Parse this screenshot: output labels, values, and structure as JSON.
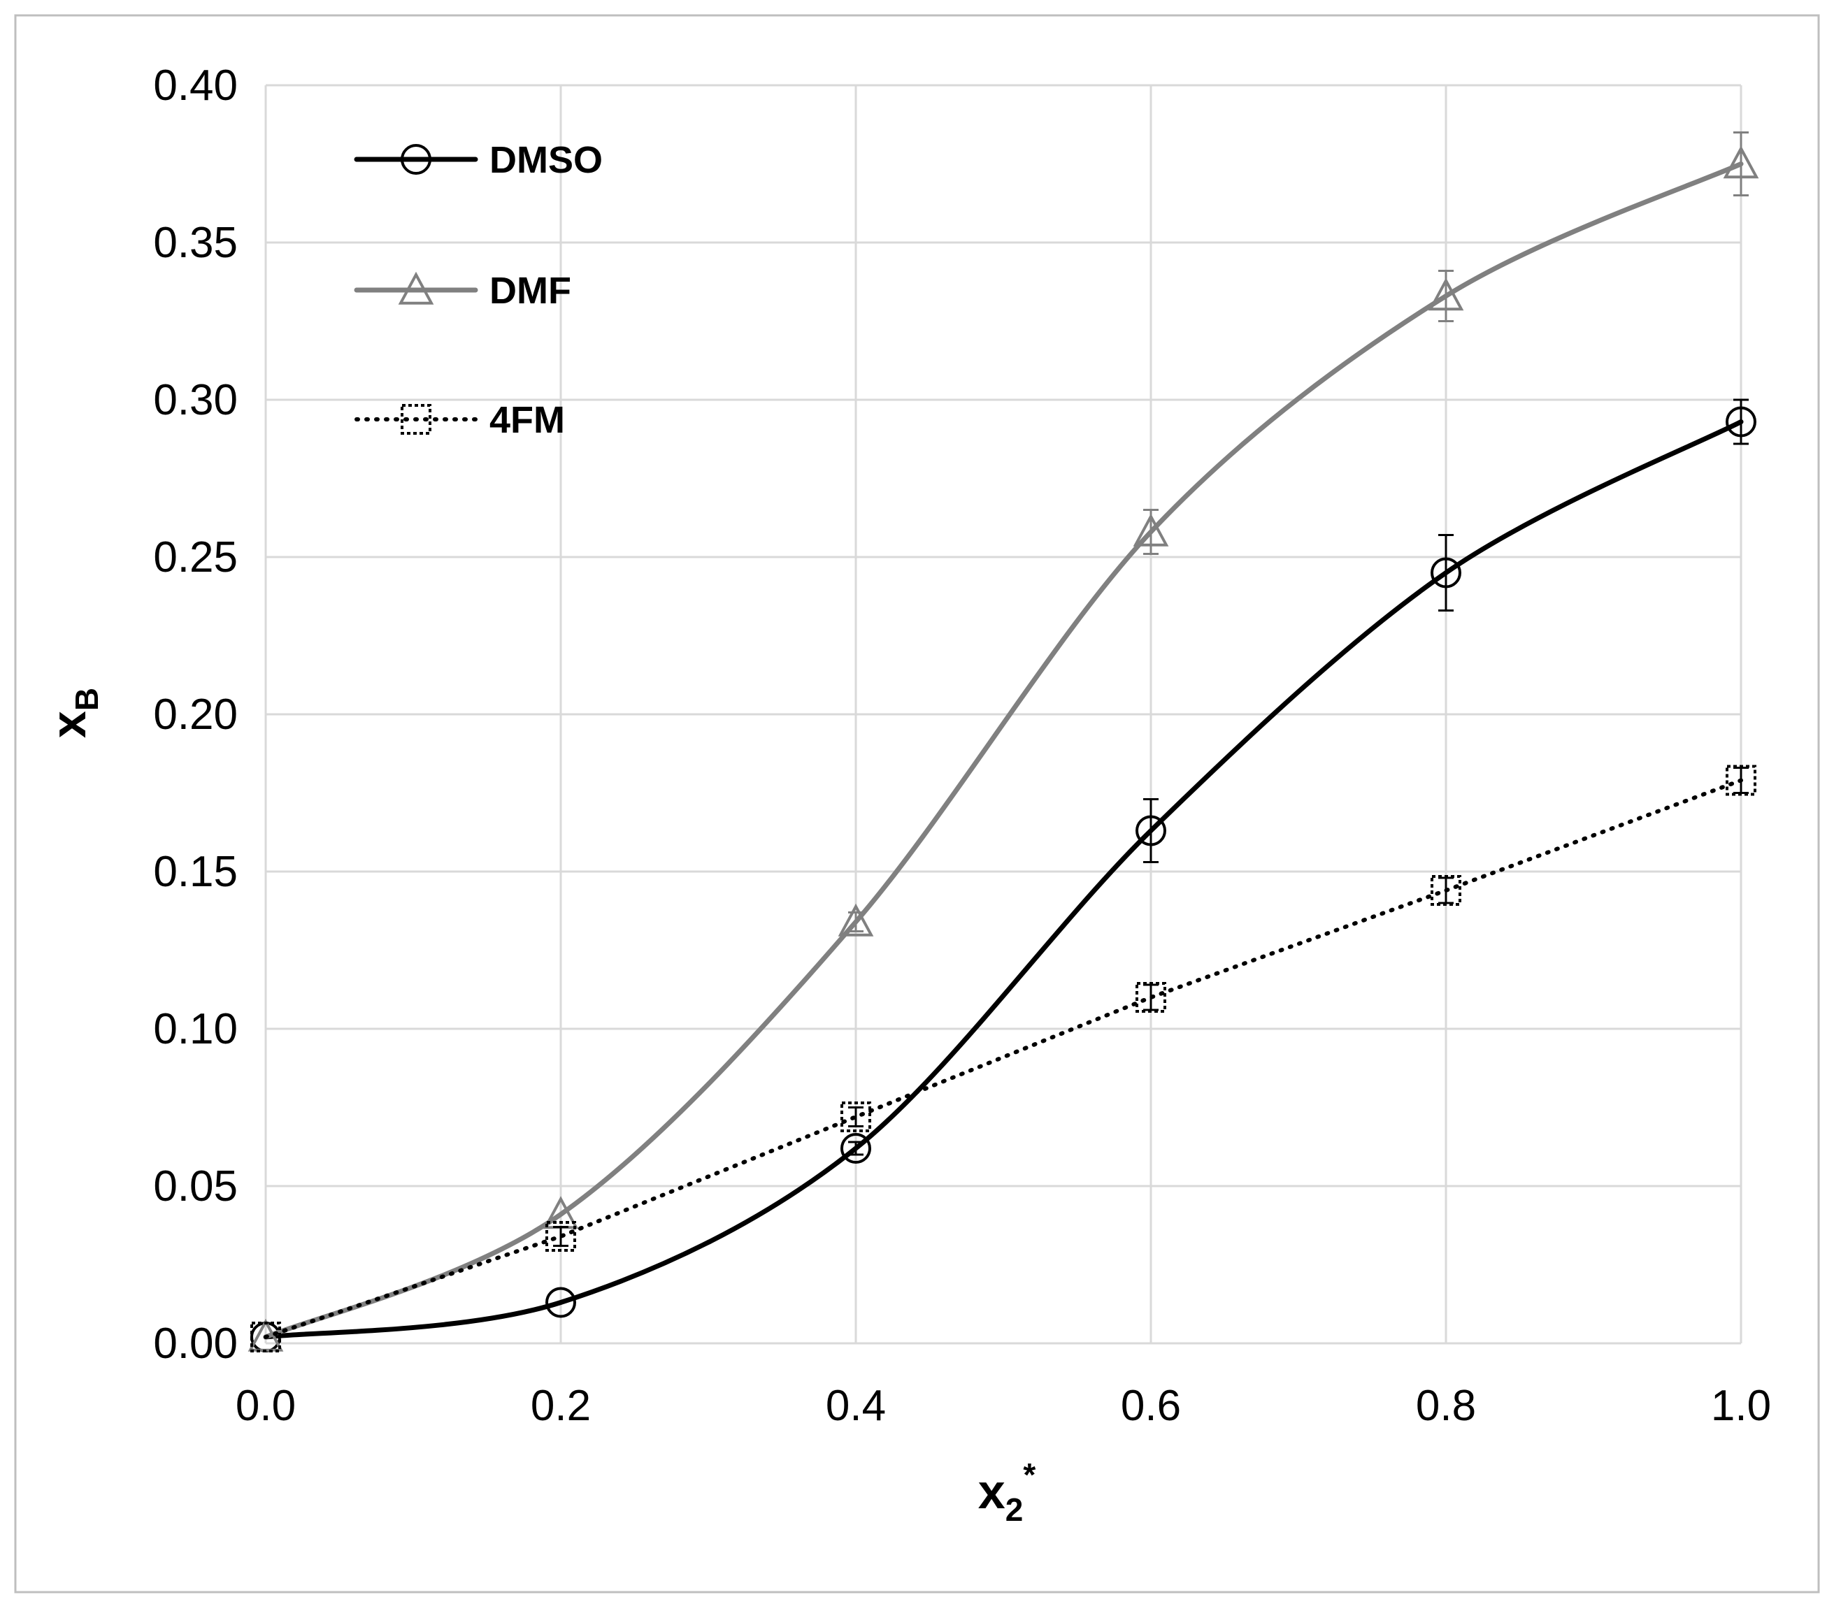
{
  "chart_data": {
    "type": "line",
    "title": "",
    "xlabel": {
      "main": "x",
      "sub": "2",
      "sup": "*"
    },
    "ylabel": {
      "main": "x",
      "sub": "B"
    },
    "xlim": [
      0.0,
      1.0
    ],
    "ylim": [
      0.0,
      0.4
    ],
    "x_ticks": [
      "0.0",
      "0.2",
      "0.4",
      "0.6",
      "0.8",
      "1.0"
    ],
    "y_ticks": [
      "0.00",
      "0.05",
      "0.10",
      "0.15",
      "0.20",
      "0.25",
      "0.30",
      "0.35",
      "0.40"
    ],
    "x_tick_values": [
      0.0,
      0.2,
      0.4,
      0.6,
      0.8,
      1.0
    ],
    "y_tick_values": [
      0.0,
      0.05,
      0.1,
      0.15,
      0.2,
      0.25,
      0.3,
      0.35,
      0.4
    ],
    "grid": true,
    "legend_position": "top-left",
    "x": [
      0.0,
      0.2,
      0.4,
      0.6,
      0.8,
      1.0
    ],
    "series": [
      {
        "name": "DMSO",
        "values": [
          0.002,
          0.013,
          0.062,
          0.163,
          0.245,
          0.293
        ],
        "errors": [
          0.0,
          0.0,
          0.002,
          0.01,
          0.012,
          0.007
        ],
        "color": "#000000",
        "line_style": "solid",
        "marker": "circle"
      },
      {
        "name": "DMF",
        "values": [
          0.002,
          0.041,
          0.134,
          0.258,
          0.333,
          0.375
        ],
        "errors": [
          0.0,
          0.0,
          0.003,
          0.007,
          0.008,
          0.01
        ],
        "color": "#808080",
        "line_style": "solid",
        "marker": "triangle"
      },
      {
        "name": "4FM",
        "values": [
          0.002,
          0.034,
          0.072,
          0.11,
          0.144,
          0.179
        ],
        "errors": [
          0.0,
          0.003,
          0.003,
          0.004,
          0.004,
          0.004
        ],
        "color": "#000000",
        "line_style": "dotted",
        "marker": "square"
      }
    ]
  }
}
